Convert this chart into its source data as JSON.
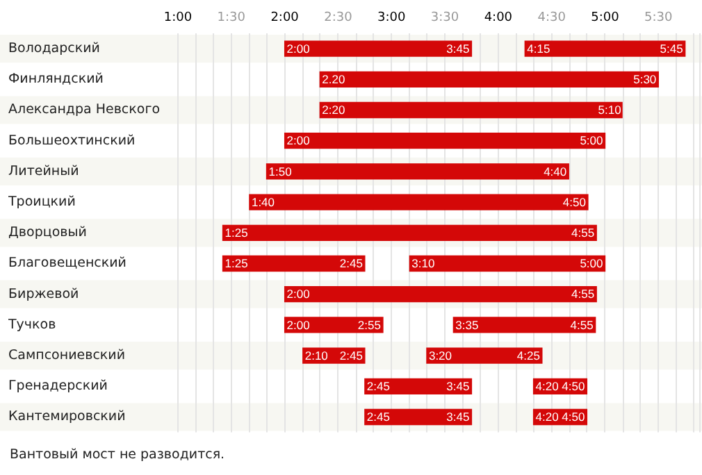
{
  "chart_data": {
    "type": "bar",
    "orientation": "horizontal",
    "categories": [
      "Володарский",
      "Финляндский",
      "Александра Невского",
      "Большеохтинский",
      "Литейный",
      "Троицкий",
      "Дворцовый",
      "Благовещенский",
      "Биржевой",
      "Тучков",
      "Сампсониевский",
      "Гренадерский",
      "Кантемировский"
    ],
    "series": [
      {
        "color": "#d40808",
        "base": [
          2,
          2.33,
          2.33,
          2,
          1.83,
          1.67,
          1.42,
          1.42,
          2,
          2,
          2.17,
          2.75,
          2.75
        ],
        "values": [
          1.75,
          3.17,
          2.83,
          3,
          2.83,
          3.17,
          3.5,
          1.33,
          2.92,
          0.92,
          0.58,
          1,
          1
        ]
      },
      {
        "color": "#d40808",
        "base": [
          4.25,
          null,
          null,
          null,
          null,
          null,
          null,
          3.17,
          null,
          3.58,
          3.33,
          4.33,
          4.33
        ],
        "values": [
          1.5,
          null,
          null,
          null,
          null,
          null,
          null,
          1.83,
          null,
          1.33,
          1.08,
          0.5,
          0.5
        ]
      }
    ],
    "xlim": [
      1,
      5.9
    ],
    "xticks": [
      {
        "value": 1,
        "label": "1:00"
      },
      {
        "value": 1.17,
        "label": null
      },
      {
        "value": 1.33,
        "label": null
      },
      {
        "value": 1.5,
        "label": "1:30"
      },
      {
        "value": 1.67,
        "label": null
      },
      {
        "value": 1.83,
        "label": null
      },
      {
        "value": 2,
        "label": "2:00"
      },
      {
        "value": 2.17,
        "label": null
      },
      {
        "value": 2.33,
        "label": null
      },
      {
        "value": 2.5,
        "label": "2:30"
      },
      {
        "value": 2.67,
        "label": null
      },
      {
        "value": 2.83,
        "label": null
      },
      {
        "value": 3,
        "label": "3:00"
      },
      {
        "value": 3.17,
        "label": null
      },
      {
        "value": 3.33,
        "label": null
      },
      {
        "value": 3.5,
        "label": "3:30"
      },
      {
        "value": 3.67,
        "label": null
      },
      {
        "value": 3.83,
        "label": null
      },
      {
        "value": 4,
        "label": "4:00"
      },
      {
        "value": 4.17,
        "label": null
      },
      {
        "value": 4.33,
        "label": null
      },
      {
        "value": 4.5,
        "label": "4:30"
      },
      {
        "value": 4.67,
        "label": null
      },
      {
        "value": 4.83,
        "label": null
      },
      {
        "value": 5,
        "label": "5:00"
      },
      {
        "value": 5.17,
        "label": null
      },
      {
        "value": 5.33,
        "label": null
      },
      {
        "value": 5.5,
        "label": "5:30"
      },
      {
        "value": 5.67,
        "label": null
      },
      {
        "value": 5.83,
        "label": null
      }
    ],
    "grid": "x",
    "annotations": [
      {
        "text": "2:00",
        "x": 2,
        "y": "Володарский"
      },
      {
        "text": "3:45",
        "x": 3.75,
        "y": "Володарский"
      },
      {
        "text": "4:15",
        "x": 4.25,
        "y": "Володарский"
      },
      {
        "text": "5:45",
        "x": 5.75,
        "y": "Володарский"
      },
      {
        "text": "2.20",
        "x": 2.33,
        "y": "Финляндский"
      },
      {
        "text": "5:30",
        "x": 5.5,
        "y": "Финляндский"
      },
      {
        "text": "2:20",
        "x": 2.33,
        "y": "Александра Невского"
      },
      {
        "text": "5:10",
        "x": 5.17,
        "y": "Александра Невского"
      },
      {
        "text": "2:00",
        "x": 2,
        "y": "Большеохтинский"
      },
      {
        "text": "5:00",
        "x": 5,
        "y": "Большеохтинский"
      },
      {
        "text": "1:50",
        "x": 1.83,
        "y": "Литейный"
      },
      {
        "text": "4:40",
        "x": 4.66,
        "y": "Литейный"
      },
      {
        "text": "1:40",
        "x": 1.67,
        "y": "Троицкий"
      },
      {
        "text": "4:50",
        "x": 4.84,
        "y": "Троицкий"
      },
      {
        "text": "1:25",
        "x": 1.42,
        "y": "Дворцовый"
      },
      {
        "text": "4:55",
        "x": 4.92,
        "y": "Дворцовый"
      },
      {
        "text": "1:25",
        "x": 1.42,
        "y": "Благовещенский"
      },
      {
        "text": "2:45",
        "x": 2.75,
        "y": "Благовещенский"
      },
      {
        "text": "3:10",
        "x": 3.17,
        "y": "Благовещенский"
      },
      {
        "text": "5:00",
        "x": 5,
        "y": "Благовещенский"
      },
      {
        "text": "2:00",
        "x": 2,
        "y": "Биржевой"
      },
      {
        "text": "4:55",
        "x": 4.92,
        "y": "Биржевой"
      },
      {
        "text": "2:00",
        "x": 2,
        "y": "Тучков"
      },
      {
        "text": "2:55",
        "x": 2.92,
        "y": "Тучков"
      },
      {
        "text": "3:35",
        "x": 3.58,
        "y": "Тучков"
      },
      {
        "text": "4:55",
        "x": 4.91,
        "y": "Тучков"
      },
      {
        "text": "2:10",
        "x": 2.17,
        "y": "Сампсониевский"
      },
      {
        "text": "2:45",
        "x": 2.75,
        "y": "Сампсониевский"
      },
      {
        "text": "3:20",
        "x": 3.33,
        "y": "Сампсониевский"
      },
      {
        "text": "4:25",
        "x": 4.41,
        "y": "Сампсониевский"
      },
      {
        "text": "2:45",
        "x": 2.75,
        "y": "Гренадерский"
      },
      {
        "text": "3:45",
        "x": 3.75,
        "y": "Гренадерский"
      },
      {
        "text": "4:20",
        "x": 4.33,
        "y": "Гренадерский"
      },
      {
        "text": "4:50",
        "x": 4.83,
        "y": "Гренадерский"
      },
      {
        "text": "2:45",
        "x": 2.75,
        "y": "Кантемировский"
      },
      {
        "text": "3:45",
        "x": 3.75,
        "y": "Кантемировский"
      },
      {
        "text": "4:20",
        "x": 4.33,
        "y": "Кантемировский"
      },
      {
        "text": "4:50",
        "x": 4.83,
        "y": "Кантемировский"
      },
      "Вантовый мост не разводится."
    ]
  }
}
